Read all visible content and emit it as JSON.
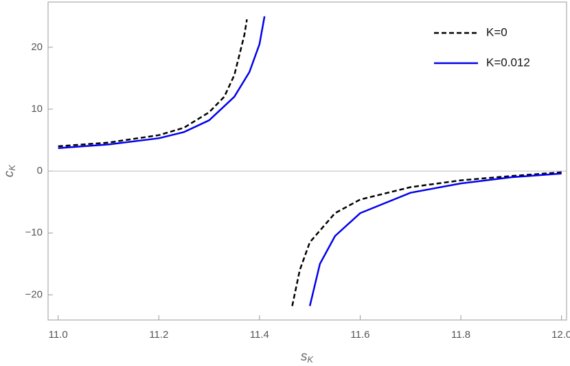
{
  "chart_data": {
    "type": "line",
    "xlabel": {
      "main": "s",
      "sub": "K"
    },
    "ylabel": {
      "main": "c",
      "sub": "K"
    },
    "xlim": [
      10.98,
      12.01
    ],
    "ylim": [
      -24.06,
      27.3
    ],
    "xticks": [
      {
        "value": 11,
        "label": "11.0"
      },
      {
        "value": 11.2,
        "label": "11.2"
      },
      {
        "value": 11.4,
        "label": "11.4"
      },
      {
        "value": 11.6,
        "label": "11.6"
      },
      {
        "value": 11.8,
        "label": "11.8"
      },
      {
        "value": 12,
        "label": "12.0"
      }
    ],
    "yticks": [
      {
        "value": -20,
        "label": "−20"
      },
      {
        "value": -10,
        "label": "−10"
      },
      0,
      10,
      20
    ],
    "zero_line": true,
    "legend": "upper right",
    "series": [
      {
        "name": "K=0",
        "color": "#000000",
        "dashed": true,
        "x": [
          11.0,
          11.1,
          11.2,
          11.25,
          11.3,
          11.33,
          11.35,
          11.37,
          11.375,
          null,
          11.465,
          11.48,
          11.5,
          11.55,
          11.6,
          11.7,
          11.8,
          11.9,
          12.0
        ],
        "values": [
          4.0,
          4.6,
          5.8,
          7.0,
          9.5,
          12.0,
          15.5,
          22.0,
          24.5,
          null,
          -21.8,
          -16.0,
          -11.5,
          -6.8,
          -4.6,
          -2.6,
          -1.5,
          -0.8,
          -0.2
        ]
      },
      {
        "name": "K=0.012",
        "color": "#0000ee",
        "dashed": false,
        "x": [
          11.0,
          11.1,
          11.2,
          11.25,
          11.3,
          11.35,
          11.38,
          11.4,
          11.41,
          null,
          11.5,
          11.52,
          11.55,
          11.6,
          11.7,
          11.8,
          11.9,
          12.0
        ],
        "values": [
          3.7,
          4.3,
          5.3,
          6.3,
          8.2,
          12.0,
          16.0,
          20.5,
          25.0,
          null,
          -21.8,
          -15.0,
          -10.5,
          -6.8,
          -3.5,
          -2.0,
          -1.0,
          -0.4
        ]
      }
    ]
  }
}
